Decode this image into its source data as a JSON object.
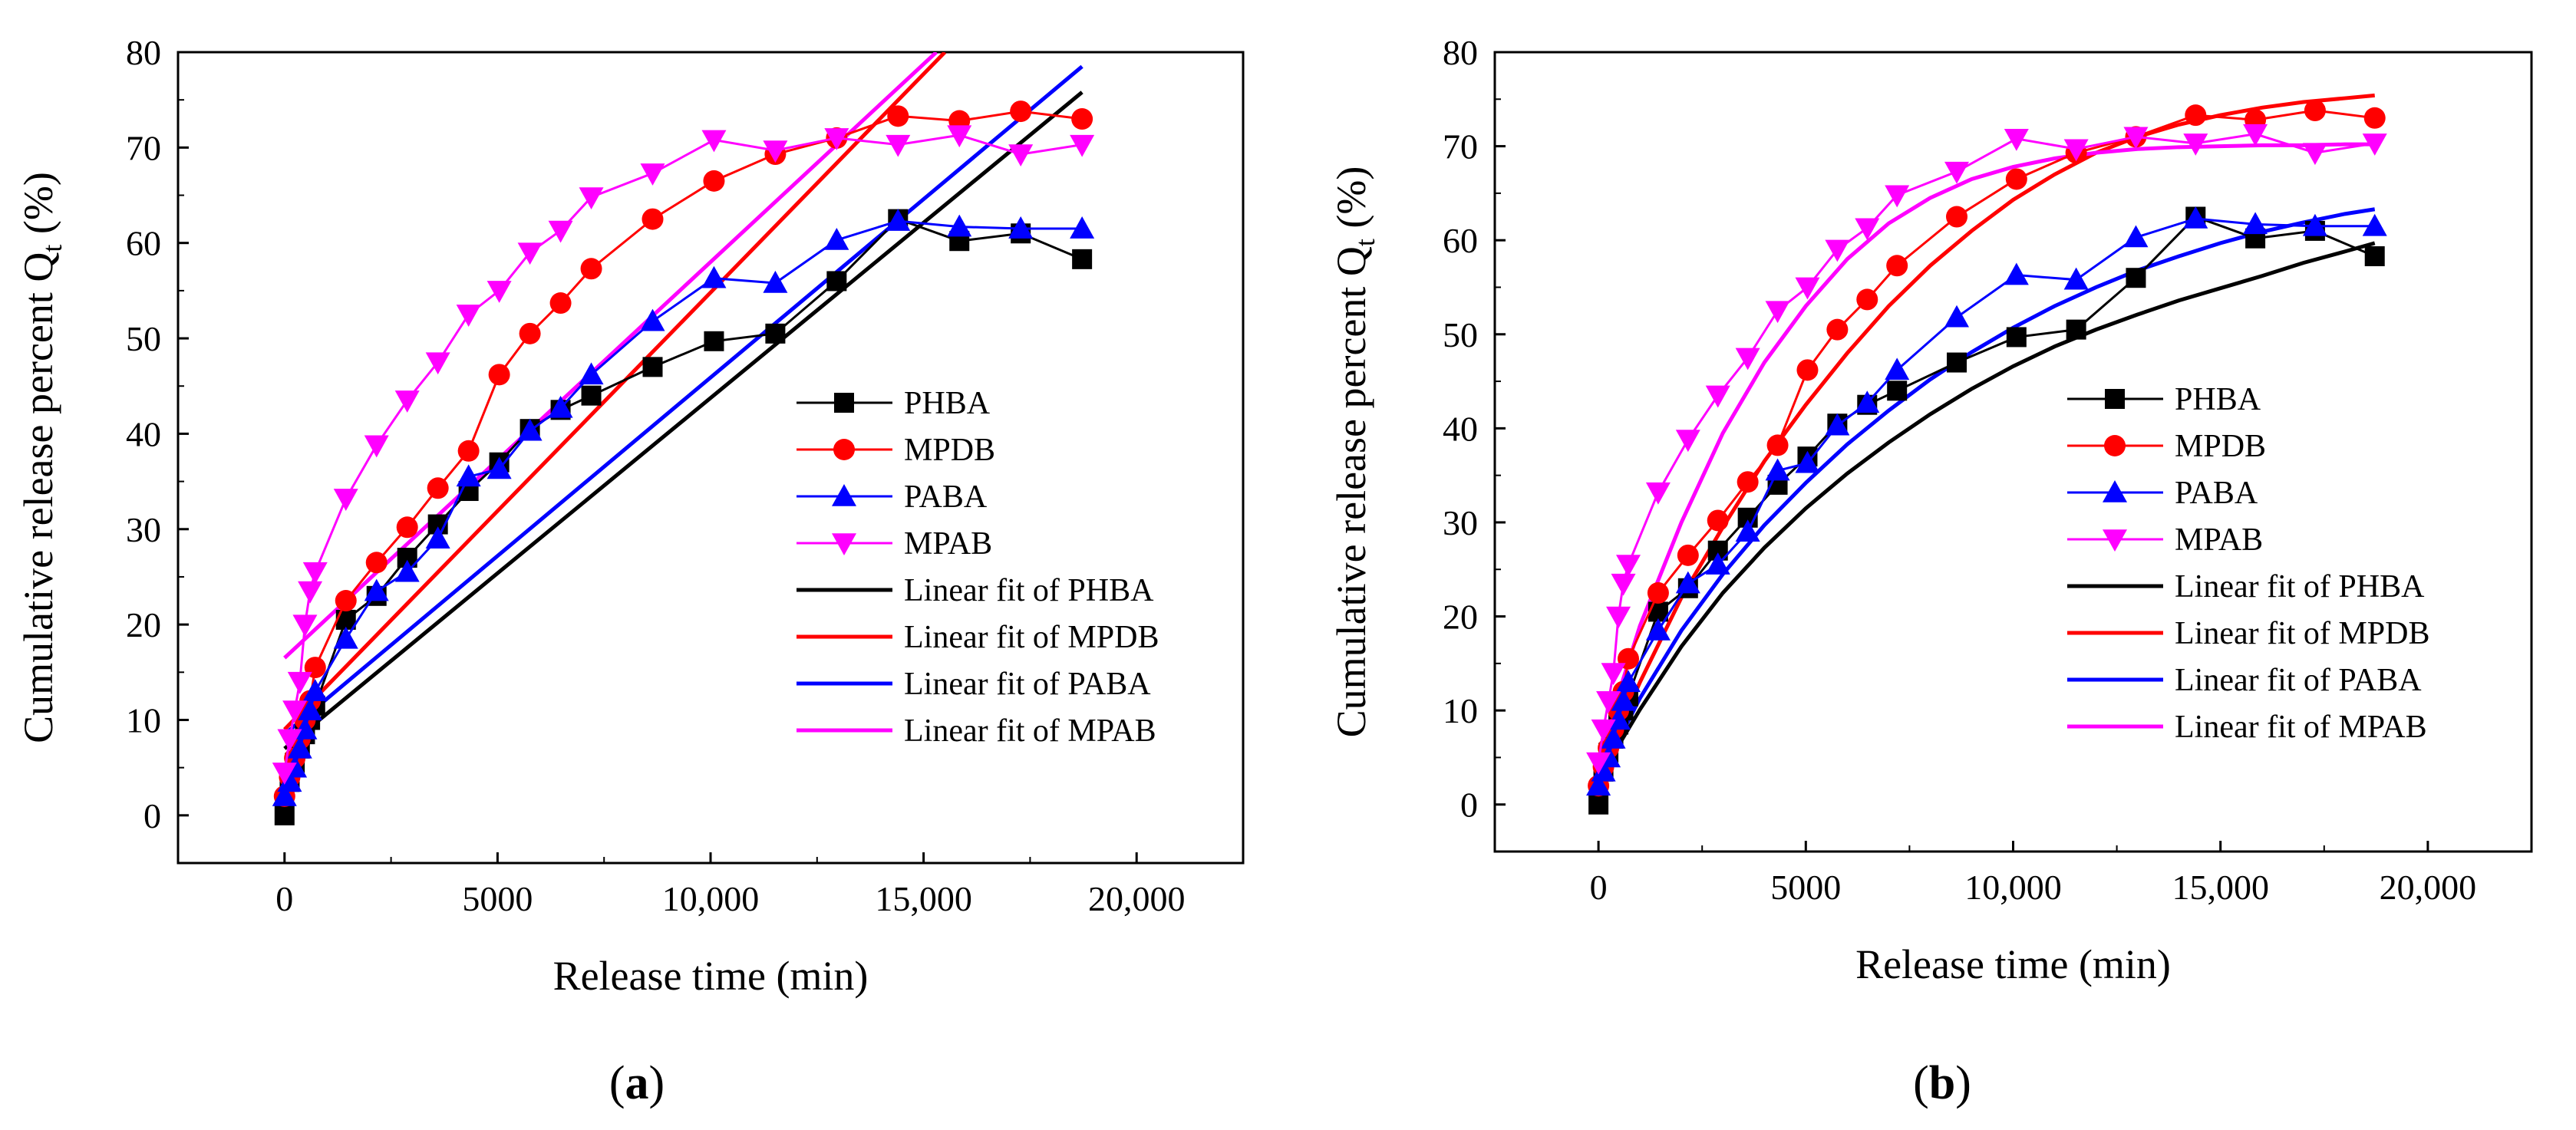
{
  "figure": {
    "panels": [
      {
        "letter": "a",
        "caption_open": "(",
        "caption_close": ")"
      },
      {
        "letter": "b",
        "caption_open": "(",
        "caption_close": ")"
      }
    ]
  },
  "chart_data": [
    {
      "type": "scatter",
      "panel": "a",
      "xlabel": "Release time (min)",
      "ylabel_main": "Cumulative release percent Q",
      "ylabel_sub": "t",
      "ylabel_unit": " (%)",
      "xlim": [
        -2500,
        22500
      ],
      "ylim": [
        -5,
        80
      ],
      "xticks": [
        0,
        5000,
        10000,
        15000,
        20000
      ],
      "xtick_labels": [
        "0",
        "5000",
        "10,000",
        "15,000",
        "20,000"
      ],
      "yticks": [
        0,
        10,
        20,
        30,
        40,
        50,
        60,
        70,
        80
      ],
      "ytick_labels": [
        "0",
        "10",
        "20",
        "30",
        "40",
        "50",
        "60",
        "70",
        "80"
      ],
      "legend_position": "right-middle",
      "series": [
        {
          "name": "PHBA",
          "color": "#000000",
          "marker": "square",
          "x": [
            0,
            120,
            240,
            360,
            480,
            600,
            720,
            1440,
            2160,
            2880,
            3600,
            4320,
            5040,
            5760,
            6480,
            7200,
            8640,
            10080,
            11520,
            12960,
            14400,
            15840,
            17280,
            18720
          ],
          "y": [
            0,
            3.5,
            5.5,
            7.0,
            8.5,
            10.0,
            11.5,
            20.5,
            23.0,
            27.0,
            30.5,
            34.0,
            37.0,
            40.5,
            42.5,
            44.0,
            47.0,
            49.7,
            50.5,
            56.0,
            62.5,
            60.2,
            61.0,
            58.3
          ]
        },
        {
          "name": "MPDB",
          "color": "#ff0000",
          "marker": "circle",
          "x": [
            0,
            120,
            240,
            360,
            480,
            600,
            720,
            1440,
            2160,
            2880,
            3600,
            4320,
            5040,
            5760,
            6480,
            7200,
            8640,
            10080,
            11520,
            12960,
            14400,
            15840,
            17280,
            18720
          ],
          "y": [
            2.0,
            4.0,
            6.0,
            8.0,
            10.0,
            12.0,
            15.5,
            22.5,
            26.5,
            30.2,
            34.3,
            38.2,
            46.2,
            50.5,
            53.7,
            57.3,
            62.5,
            66.5,
            69.3,
            71.0,
            73.3,
            72.8,
            73.8,
            73.0
          ]
        },
        {
          "name": "PABA",
          "color": "#0000ff",
          "marker": "triangle-up",
          "x": [
            0,
            120,
            240,
            360,
            480,
            600,
            720,
            1440,
            2160,
            2880,
            3600,
            4320,
            5040,
            5760,
            6480,
            7200,
            8640,
            10080,
            11520,
            12960,
            14400,
            15840,
            17280,
            18720
          ],
          "y": [
            2.0,
            3.5,
            5.0,
            7.0,
            9.0,
            11.0,
            13.0,
            18.5,
            23.5,
            25.5,
            29.0,
            35.5,
            36.3,
            40.3,
            42.7,
            46.2,
            51.8,
            56.3,
            55.8,
            60.3,
            62.3,
            61.7,
            61.5,
            61.5
          ]
        },
        {
          "name": "MPAB",
          "color": "#ff00ff",
          "marker": "triangle-down",
          "x": [
            0,
            120,
            240,
            360,
            480,
            600,
            720,
            1440,
            2160,
            2880,
            3600,
            4320,
            5040,
            5760,
            6480,
            7200,
            8640,
            10080,
            11520,
            12960,
            14400,
            15840,
            17280,
            18720
          ],
          "y": [
            4.5,
            8.0,
            11.0,
            14.0,
            20.0,
            23.5,
            25.5,
            33.2,
            38.8,
            43.5,
            47.5,
            52.5,
            55.0,
            59.0,
            61.3,
            64.8,
            67.3,
            70.8,
            69.7,
            71.0,
            70.3,
            71.3,
            69.3,
            70.3
          ]
        },
        {
          "name": "Linear fit of PHBA",
          "color": "#000000",
          "line": true,
          "x": [
            0,
            18720
          ],
          "y": [
            7.0,
            75.8
          ]
        },
        {
          "name": "Linear fit of MPDB",
          "color": "#ff0000",
          "line": true,
          "x": [
            0,
            15500
          ],
          "y": [
            9.0,
            80.0
          ]
        },
        {
          "name": "Linear fit of PABA",
          "color": "#0000ff",
          "line": true,
          "x": [
            0,
            18720
          ],
          "y": [
            8.5,
            78.5
          ]
        },
        {
          "name": "Linear fit of MPAB",
          "color": "#ff00ff",
          "line": true,
          "x": [
            0,
            15300
          ],
          "y": [
            16.5,
            80.0
          ]
        }
      ]
    },
    {
      "type": "scatter",
      "panel": "b",
      "xlabel": "Release time (min)",
      "ylabel_main": "Cumulative release percent Q",
      "ylabel_sub": "t",
      "ylabel_unit": " (%)",
      "xlim": [
        -2500,
        22500
      ],
      "ylim": [
        -5,
        80
      ],
      "xticks": [
        0,
        5000,
        10000,
        15000,
        20000
      ],
      "xtick_labels": [
        "0",
        "5000",
        "10,000",
        "15,000",
        "20,000"
      ],
      "yticks": [
        0,
        10,
        20,
        30,
        40,
        50,
        60,
        70,
        80
      ],
      "ytick_labels": [
        "0",
        "10",
        "20",
        "30",
        "40",
        "50",
        "60",
        "70",
        "80"
      ],
      "legend_position": "right-middle",
      "series": [
        {
          "name": "PHBA",
          "color": "#000000",
          "marker": "square",
          "x": [
            0,
            120,
            240,
            360,
            480,
            600,
            720,
            1440,
            2160,
            2880,
            3600,
            4320,
            5040,
            5760,
            6480,
            7200,
            8640,
            10080,
            11520,
            12960,
            14400,
            15840,
            17280,
            18720
          ],
          "y": [
            0,
            3.5,
            5.5,
            7.0,
            8.5,
            10.0,
            11.5,
            20.5,
            23.0,
            27.0,
            30.5,
            34.0,
            37.0,
            40.5,
            42.5,
            44.0,
            47.0,
            49.7,
            50.5,
            56.0,
            62.5,
            60.2,
            61.0,
            58.3
          ]
        },
        {
          "name": "MPDB",
          "color": "#ff0000",
          "marker": "circle",
          "x": [
            0,
            120,
            240,
            360,
            480,
            600,
            720,
            1440,
            2160,
            2880,
            3600,
            4320,
            5040,
            5760,
            6480,
            7200,
            8640,
            10080,
            11520,
            12960,
            14400,
            15840,
            17280,
            18720
          ],
          "y": [
            2.0,
            4.0,
            6.0,
            8.0,
            10.0,
            12.0,
            15.5,
            22.5,
            26.5,
            30.2,
            34.3,
            38.2,
            46.2,
            50.5,
            53.7,
            57.3,
            62.5,
            66.5,
            69.3,
            71.0,
            73.3,
            72.8,
            73.8,
            73.0
          ]
        },
        {
          "name": "PABA",
          "color": "#0000ff",
          "marker": "triangle-up",
          "x": [
            0,
            120,
            240,
            360,
            480,
            600,
            720,
            1440,
            2160,
            2880,
            3600,
            4320,
            5040,
            5760,
            6480,
            7200,
            8640,
            10080,
            11520,
            12960,
            14400,
            15840,
            17280,
            18720
          ],
          "y": [
            2.0,
            3.5,
            5.0,
            7.0,
            9.0,
            11.0,
            13.0,
            18.5,
            23.5,
            25.5,
            29.0,
            35.5,
            36.3,
            40.3,
            42.7,
            46.2,
            51.8,
            56.3,
            55.8,
            60.3,
            62.3,
            61.7,
            61.5,
            61.5
          ]
        },
        {
          "name": "MPAB",
          "color": "#ff00ff",
          "marker": "triangle-down",
          "x": [
            0,
            120,
            240,
            360,
            480,
            600,
            720,
            1440,
            2160,
            2880,
            3600,
            4320,
            5040,
            5760,
            6480,
            7200,
            8640,
            10080,
            11520,
            12960,
            14400,
            15840,
            17280,
            18720
          ],
          "y": [
            4.5,
            8.0,
            11.0,
            14.0,
            20.0,
            23.5,
            25.5,
            33.2,
            38.8,
            43.5,
            47.5,
            52.5,
            55.0,
            59.0,
            61.3,
            64.8,
            67.3,
            70.8,
            69.7,
            71.0,
            70.3,
            71.3,
            69.3,
            70.3
          ]
        },
        {
          "name": "Linear fit of PHBA",
          "color": "#000000",
          "line": true,
          "x": [
            0,
            500,
            1000,
            2000,
            3000,
            4000,
            5000,
            6000,
            7000,
            8000,
            9000,
            10000,
            11000,
            12000,
            13000,
            14000,
            15000,
            16000,
            17000,
            18000,
            18720
          ],
          "y": [
            2.0,
            6.4,
            10.1,
            16.8,
            22.5,
            27.3,
            31.5,
            35.2,
            38.5,
            41.5,
            44.2,
            46.6,
            48.7,
            50.5,
            52.1,
            53.6,
            54.9,
            56.2,
            57.6,
            58.8,
            59.7
          ]
        },
        {
          "name": "Linear fit of MPDB",
          "color": "#ff0000",
          "line": true,
          "x": [
            0,
            500,
            1000,
            2000,
            3000,
            4000,
            5000,
            6000,
            7000,
            8000,
            9000,
            10000,
            11000,
            12000,
            13000,
            14000,
            15000,
            16000,
            17000,
            18000,
            18720
          ],
          "y": [
            2.5,
            8.0,
            13.0,
            22.0,
            29.5,
            36.5,
            42.5,
            48.0,
            53.0,
            57.3,
            61.0,
            64.3,
            67.0,
            69.3,
            71.0,
            72.3,
            73.3,
            74.1,
            74.7,
            75.1,
            75.4
          ]
        },
        {
          "name": "Linear fit of PABA",
          "color": "#0000ff",
          "line": true,
          "x": [
            0,
            500,
            1000,
            2000,
            3000,
            4000,
            5000,
            6000,
            7000,
            8000,
            9000,
            10000,
            11000,
            12000,
            13000,
            14000,
            15000,
            16000,
            17000,
            18000,
            18720
          ],
          "y": [
            2.0,
            7.0,
            11.3,
            18.5,
            24.5,
            29.7,
            34.2,
            38.3,
            41.9,
            45.2,
            48.1,
            50.7,
            53.0,
            55.0,
            56.8,
            58.3,
            59.7,
            60.9,
            61.9,
            62.8,
            63.3
          ]
        },
        {
          "name": "Linear fit of MPAB",
          "color": "#ff00ff",
          "line": true,
          "x": [
            0,
            500,
            1000,
            2000,
            3000,
            4000,
            5000,
            6000,
            7000,
            8000,
            9000,
            10000,
            11000,
            12000,
            13000,
            14000,
            15000,
            16000,
            17000,
            18000,
            18720
          ],
          "y": [
            3.0,
            12.0,
            19.0,
            30.0,
            39.5,
            47.0,
            53.0,
            58.0,
            61.8,
            64.5,
            66.5,
            67.8,
            68.7,
            69.3,
            69.7,
            69.9,
            70.0,
            70.1,
            70.1,
            70.2,
            70.2
          ]
        }
      ]
    }
  ]
}
